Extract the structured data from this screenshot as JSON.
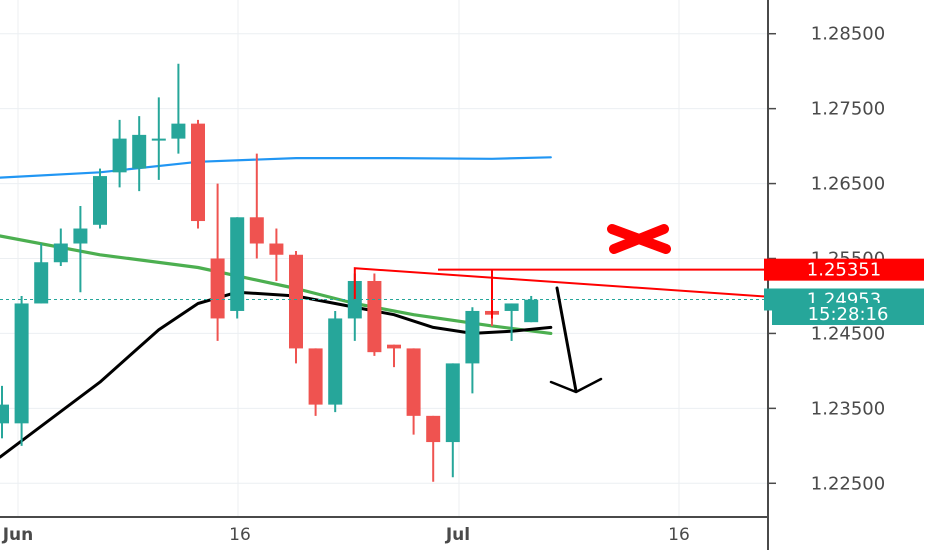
{
  "chart_data": {
    "type": "candlestick",
    "title": "",
    "xlabel": "",
    "ylabel": "",
    "ylim": [
      1.2205,
      1.2895
    ],
    "grid": true,
    "x_tick_labels": [
      "Jun",
      "16",
      "Jul",
      "16"
    ],
    "y_tick_labels": [
      "1.28500",
      "1.27500",
      "1.26500",
      "1.25500",
      "1.24500",
      "1.23500",
      "1.22500"
    ],
    "colors": {
      "bull": "#26a69a",
      "bear": "#ef5350",
      "ma_blue": "#2196f3",
      "ma_green": "#4caf50",
      "ma_black": "#000000",
      "annotation": "#ff0000"
    },
    "candles": [
      {
        "o": 1.233,
        "h": 1.238,
        "l": 1.231,
        "c": 1.2355
      },
      {
        "o": 1.233,
        "h": 1.25,
        "l": 1.23,
        "c": 1.249
      },
      {
        "o": 1.249,
        "h": 1.257,
        "l": 1.249,
        "c": 1.2545
      },
      {
        "o": 1.2545,
        "h": 1.259,
        "l": 1.254,
        "c": 1.257
      },
      {
        "o": 1.257,
        "h": 1.262,
        "l": 1.2505,
        "c": 1.259
      },
      {
        "o": 1.2595,
        "h": 1.267,
        "l": 1.259,
        "c": 1.266
      },
      {
        "o": 1.2665,
        "h": 1.2735,
        "l": 1.2645,
        "c": 1.271
      },
      {
        "o": 1.267,
        "h": 1.274,
        "l": 1.264,
        "c": 1.2715
      },
      {
        "o": 1.271,
        "h": 1.2765,
        "l": 1.2655,
        "c": 1.271
      },
      {
        "o": 1.271,
        "h": 1.281,
        "l": 1.269,
        "c": 1.273
      },
      {
        "o": 1.273,
        "h": 1.2735,
        "l": 1.259,
        "c": 1.26
      },
      {
        "o": 1.255,
        "h": 1.265,
        "l": 1.244,
        "c": 1.247
      },
      {
        "o": 1.248,
        "h": 1.2605,
        "l": 1.247,
        "c": 1.2605
      },
      {
        "o": 1.2605,
        "h": 1.269,
        "l": 1.255,
        "c": 1.257
      },
      {
        "o": 1.257,
        "h": 1.259,
        "l": 1.252,
        "c": 1.2555
      },
      {
        "o": 1.2555,
        "h": 1.256,
        "l": 1.241,
        "c": 1.243
      },
      {
        "o": 1.243,
        "h": 1.243,
        "l": 1.234,
        "c": 1.2355
      },
      {
        "o": 1.2355,
        "h": 1.248,
        "l": 1.2345,
        "c": 1.247
      },
      {
        "o": 1.247,
        "h": 1.253,
        "l": 1.244,
        "c": 1.252
      },
      {
        "o": 1.252,
        "h": 1.253,
        "l": 1.242,
        "c": 1.2425
      },
      {
        "o": 1.2435,
        "h": 1.2435,
        "l": 1.2405,
        "c": 1.243
      },
      {
        "o": 1.243,
        "h": 1.243,
        "l": 1.2315,
        "c": 1.234
      },
      {
        "o": 1.234,
        "h": 1.234,
        "l": 1.2252,
        "c": 1.2305
      },
      {
        "o": 1.2305,
        "h": 1.241,
        "l": 1.2258,
        "c": 1.241
      },
      {
        "o": 1.241,
        "h": 1.2485,
        "l": 1.237,
        "c": 1.248
      },
      {
        "o": 1.248,
        "h": 1.2525,
        "l": 1.246,
        "c": 1.2475
      },
      {
        "o": 1.248,
        "h": 1.249,
        "l": 1.244,
        "c": 1.249
      },
      {
        "o": 1.2465,
        "h": 1.25,
        "l": 1.2465,
        "c": 1.2495
      }
    ],
    "moving_averages": [
      {
        "color": "ma_blue",
        "values": [
          [
            0,
            1.2658
          ],
          [
            5,
            1.2665
          ],
          [
            10,
            1.2679
          ],
          [
            15,
            1.2684
          ],
          [
            20,
            1.2684
          ],
          [
            25,
            1.2683
          ],
          [
            28,
            1.2685
          ]
        ]
      },
      {
        "color": "ma_green",
        "values": [
          [
            0,
            1.258
          ],
          [
            5,
            1.2555
          ],
          [
            10,
            1.2538
          ],
          [
            15,
            1.251
          ],
          [
            18,
            1.249
          ],
          [
            21,
            1.2475
          ],
          [
            25,
            1.246
          ],
          [
            28,
            1.245
          ]
        ]
      },
      {
        "color": "ma_black",
        "values": [
          [
            0,
            1.2285
          ],
          [
            5,
            1.2385
          ],
          [
            8,
            1.2455
          ],
          [
            10,
            1.249
          ],
          [
            12,
            1.2505
          ],
          [
            15,
            1.25
          ],
          [
            17,
            1.249
          ],
          [
            20,
            1.2475
          ],
          [
            22,
            1.2458
          ],
          [
            24,
            1.245
          ],
          [
            26,
            1.2453
          ],
          [
            28,
            1.2458
          ]
        ]
      }
    ],
    "price_labels": [
      {
        "text": "1.25351",
        "value": 1.25351,
        "color": "#ff0000"
      },
      {
        "text": "1.24953",
        "value": 1.24953,
        "color": "#26a69a"
      },
      {
        "text": "15:28:16",
        "value": 1.24953,
        "color": "#26a69a"
      }
    ]
  }
}
